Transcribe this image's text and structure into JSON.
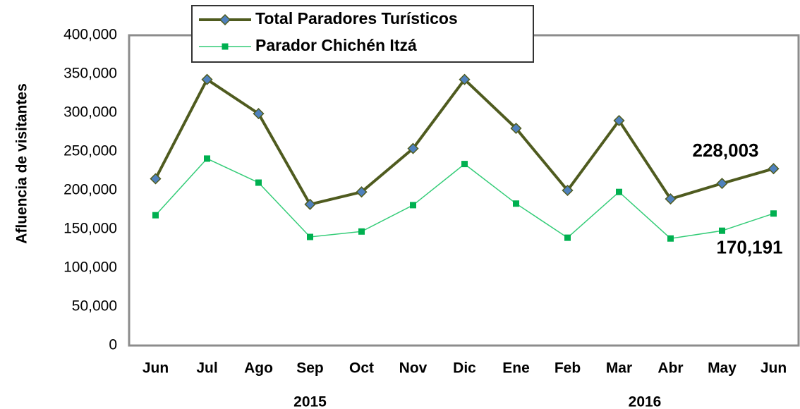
{
  "chart_data": {
    "type": "line",
    "y_label": "Afluencia  de visitantes",
    "categories": [
      "Jun",
      "Jul",
      "Ago",
      "Sep",
      "Oct",
      "Nov",
      "Dic",
      "Ene",
      "Feb",
      "Mar",
      "Abr",
      "May",
      "Jun"
    ],
    "groups": [
      {
        "label": "2015",
        "categories": 7
      },
      {
        "label": "2016",
        "categories": 6
      }
    ],
    "series": [
      {
        "name": "Total Paradores  Turísticos",
        "color": "#4f5b1f",
        "marker": "diamond",
        "marker_color": "#4f81bd",
        "values": [
          215000,
          343000,
          299000,
          182000,
          198000,
          254000,
          343000,
          280000,
          200000,
          290000,
          189000,
          209000,
          228003
        ],
        "value_labels": [
          null,
          null,
          null,
          null,
          null,
          null,
          null,
          null,
          null,
          null,
          null,
          null,
          "228,003"
        ]
      },
      {
        "name": "Parador Chichén Itzá",
        "color": "#33cc77",
        "marker": "square",
        "marker_color": "#00b050",
        "values": [
          168000,
          241000,
          210000,
          140000,
          147000,
          181000,
          234000,
          183000,
          139000,
          198000,
          138000,
          148000,
          170191
        ],
        "value_labels": [
          null,
          null,
          null,
          null,
          null,
          null,
          null,
          null,
          null,
          null,
          null,
          null,
          "170,191"
        ]
      }
    ],
    "ylim": [
      0,
      400000
    ],
    "yticks": [
      0,
      {
        "value": 50000,
        "label": "50,000"
      },
      {
        "value": 100000,
        "label": "100,000"
      },
      {
        "value": 150000,
        "label": "150,000"
      },
      {
        "value": 200000,
        "label": "200,000"
      },
      {
        "value": 250000,
        "label": "250,000"
      },
      {
        "value": 300000,
        "label": "300,000"
      },
      {
        "value": 350000,
        "label": "350,000"
      },
      {
        "value": 400000,
        "label": "400,000"
      }
    ],
    "grid": false
  }
}
